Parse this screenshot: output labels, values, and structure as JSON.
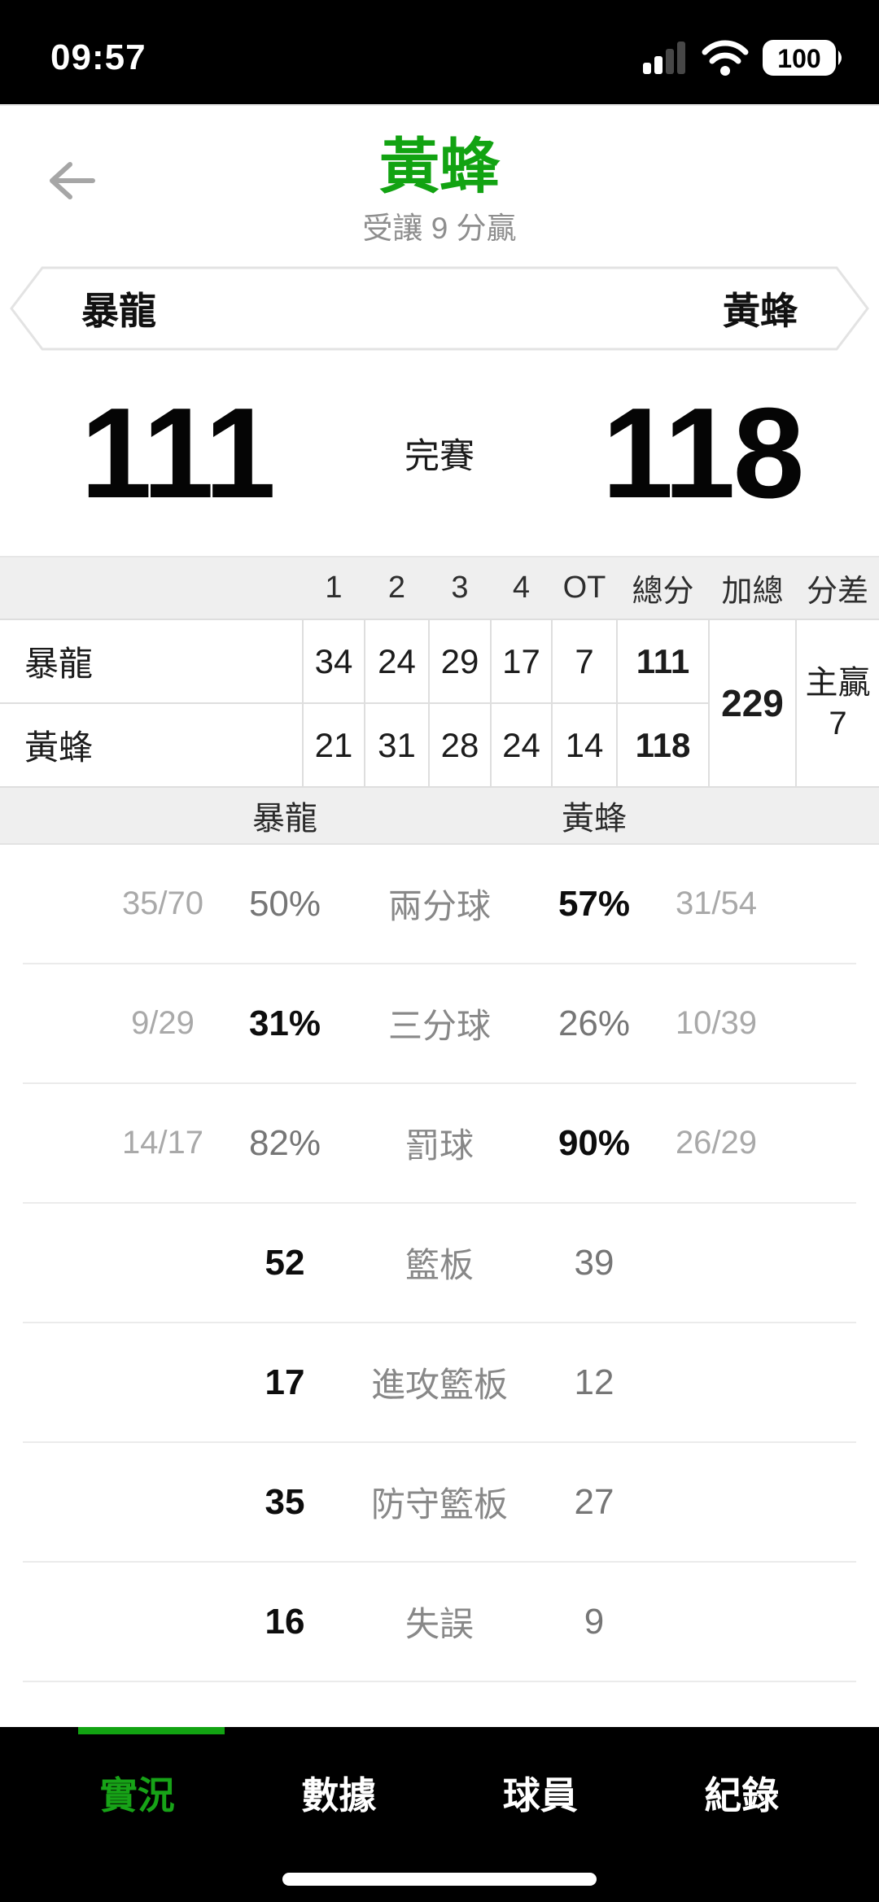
{
  "status_bar": {
    "time": "09:57",
    "battery_level": "100"
  },
  "header": {
    "title": "黃蜂",
    "subtitle": "受讓 9 分贏"
  },
  "matchup": {
    "away": "暴龍",
    "home": "黃蜂"
  },
  "scoreboard": {
    "away_score": "111",
    "status": "完賽",
    "home_score": "118"
  },
  "quarter_table": {
    "headers": [
      "",
      "1",
      "2",
      "3",
      "4",
      "OT",
      "總分",
      "加總",
      "分差"
    ],
    "rows": [
      {
        "team": "暴龍",
        "quarters": [
          "34",
          "24",
          "29",
          "17",
          "7"
        ],
        "total": "111"
      },
      {
        "team": "黃蜂",
        "quarters": [
          "21",
          "31",
          "28",
          "24",
          "14"
        ],
        "total": "118"
      }
    ],
    "combined_total": "229",
    "diff_label": "主贏",
    "diff_value": "7"
  },
  "stats_band": {
    "away": "暴龍",
    "home": "黃蜂"
  },
  "stats": [
    {
      "label": "兩分球",
      "away_frac": "35/70",
      "away_val": "50%",
      "home_val": "57%",
      "home_frac": "31/54",
      "winner": "home"
    },
    {
      "label": "三分球",
      "away_frac": "9/29",
      "away_val": "31%",
      "home_val": "26%",
      "home_frac": "10/39",
      "winner": "away"
    },
    {
      "label": "罰球",
      "away_frac": "14/17",
      "away_val": "82%",
      "home_val": "90%",
      "home_frac": "26/29",
      "winner": "home"
    },
    {
      "label": "籃板",
      "away_frac": "",
      "away_val": "52",
      "home_val": "39",
      "home_frac": "",
      "winner": "away"
    },
    {
      "label": "進攻籃板",
      "away_frac": "",
      "away_val": "17",
      "home_val": "12",
      "home_frac": "",
      "winner": "away"
    },
    {
      "label": "防守籃板",
      "away_frac": "",
      "away_val": "35",
      "home_val": "27",
      "home_frac": "",
      "winner": "away"
    },
    {
      "label": "失誤",
      "away_frac": "",
      "away_val": "16",
      "home_val": "9",
      "home_frac": "",
      "winner": "away"
    }
  ],
  "tab_bar": {
    "tabs": [
      {
        "label": "實況",
        "active": true
      },
      {
        "label": "數據",
        "active": false
      },
      {
        "label": "球員",
        "active": false
      },
      {
        "label": "紀錄",
        "active": false
      }
    ]
  },
  "colors": {
    "accent_green": "#12A312",
    "bar_black": "#000000",
    "text_dark": "#111111",
    "text_gray": "#8E8E8E",
    "text_light_gray": "#A9A9A9",
    "table_border": "#DEDEDE",
    "band_bg": "#EFEFEF"
  }
}
